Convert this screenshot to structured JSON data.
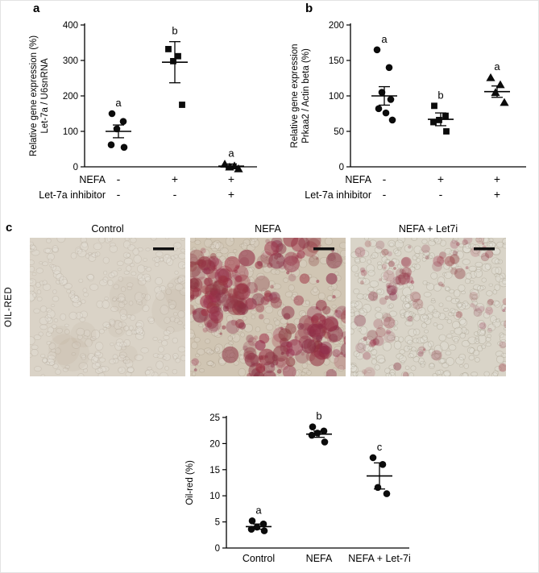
{
  "figure": {
    "panels": {
      "a": "a",
      "b": "b",
      "c": "c"
    },
    "oil_red_label": "OIL-RED",
    "micrographs": [
      {
        "title": "Control",
        "staining": "none",
        "stain_color": "#8e3c4a"
      },
      {
        "title": "NEFA",
        "staining": "heavy",
        "stain_color": "#8e3c4a"
      },
      {
        "title": "NEFA + Let7i",
        "staining": "moderate",
        "stain_color": "#8e3c4a"
      }
    ]
  },
  "chart_data": [
    {
      "id": "panel_a",
      "type": "scatter",
      "ylabel_lines": [
        "Relative gene expression (%)",
        "Let-7a / U6snRNA"
      ],
      "ylim": [
        0,
        400
      ],
      "yticks": [
        0,
        100,
        200,
        300,
        400
      ],
      "grid": false,
      "factor_rows": [
        {
          "label": "NEFA",
          "values": [
            "-",
            "+",
            "+"
          ]
        },
        {
          "label": "Let-7a inhibitor",
          "values": [
            "-",
            "-",
            "+"
          ]
        }
      ],
      "groups": [
        {
          "sig": "a",
          "marker": "circle",
          "points": [
            150,
            128,
            107,
            62,
            55
          ],
          "mean": 100,
          "sem": 18
        },
        {
          "sig": "b",
          "marker": "square",
          "points": [
            332,
            312,
            298,
            175
          ],
          "mean": 295,
          "sem": 58
        },
        {
          "sig": "a",
          "marker": "triangle",
          "points": [
            8,
            3,
            0,
            -5
          ],
          "mean": 2,
          "sem": 6
        }
      ]
    },
    {
      "id": "panel_b",
      "type": "scatter",
      "ylabel_lines": [
        "Relative gene expression",
        "Prkaa2 / Actin beta (%)"
      ],
      "ylim": [
        0,
        200
      ],
      "yticks": [
        0,
        50,
        100,
        150,
        200
      ],
      "grid": false,
      "factor_rows": [
        {
          "label": "NEFA",
          "values": [
            "-",
            "+",
            "+"
          ]
        },
        {
          "label": "Let-7a inhibitor",
          "values": [
            "-",
            "-",
            "+"
          ]
        }
      ],
      "groups": [
        {
          "sig": "a",
          "marker": "circle",
          "points": [
            165,
            140,
            105,
            95,
            82,
            76,
            66
          ],
          "mean": 100,
          "sem": 13
        },
        {
          "sig": "b",
          "marker": "square",
          "points": [
            86,
            72,
            66,
            63,
            50
          ],
          "mean": 67,
          "sem": 9
        },
        {
          "sig": "a",
          "marker": "triangle",
          "points": [
            126,
            116,
            105,
            91
          ],
          "mean": 106,
          "sem": 8
        }
      ]
    },
    {
      "id": "panel_c_chart",
      "type": "scatter",
      "ylabel_lines": [
        "Oil-red (%)"
      ],
      "ylim": [
        0,
        25
      ],
      "yticks": [
        0,
        5,
        10,
        15,
        20,
        25
      ],
      "grid": false,
      "categories": [
        "Control",
        "NEFA",
        "NEFA + Let-7i"
      ],
      "groups": [
        {
          "sig": "a",
          "marker": "circle",
          "points": [
            5.2,
            4.6,
            4.0,
            3.6,
            3.3
          ],
          "mean": 4.1,
          "sem": 0.5
        },
        {
          "sig": "b",
          "marker": "circle",
          "points": [
            23.2,
            22.4,
            22.0,
            21.6,
            20.3
          ],
          "mean": 21.8,
          "sem": 0.6
        },
        {
          "sig": "c",
          "marker": "circle",
          "points": [
            17.3,
            16.0,
            11.6,
            10.4
          ],
          "mean": 13.8,
          "sem": 2.5
        }
      ]
    }
  ]
}
